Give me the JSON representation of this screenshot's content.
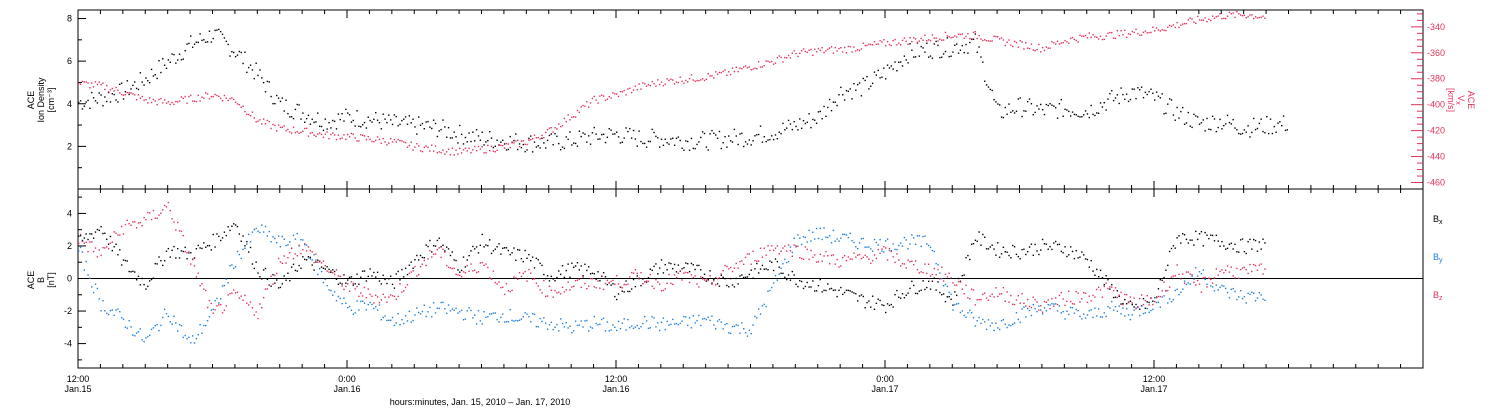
{
  "colors": {
    "density": "#000000",
    "velocity": "#e0325a",
    "bx": "#000000",
    "by": "#1f7fd8",
    "bz": "#e0325a",
    "axis": "#000000"
  },
  "chart_data": [
    {
      "type": "scatter",
      "panel": "top",
      "ylabel_lines": [
        "ACE",
        "Ion Density",
        "[cm⁻³]"
      ],
      "ylabel_right_lines": [
        "ACE",
        "V",
        "[km/s]"
      ],
      "ylabel_right_subscript": "x",
      "ylim": [
        0,
        8.4
      ],
      "yticks": [
        2,
        4,
        6,
        8
      ],
      "y2lim": [
        -465,
        -327
      ],
      "y2ticks": [
        -340,
        -360,
        -380,
        -400,
        -420,
        -440,
        -460
      ],
      "series": [
        {
          "axis": "left",
          "color": "density",
          "points_hours": [
            0,
            1,
            2,
            3,
            4,
            5,
            6,
            7,
            8,
            9,
            10,
            11,
            12,
            13,
            14,
            15,
            16,
            17,
            18,
            19,
            20,
            21,
            22,
            23,
            24,
            25,
            26,
            27,
            28,
            29,
            30,
            31,
            32,
            33,
            34,
            35,
            36,
            37,
            38,
            39,
            40,
            41,
            42,
            43,
            44,
            45,
            46,
            47,
            48,
            49,
            50,
            51,
            52,
            53,
            54,
            55,
            56,
            57,
            58,
            59,
            60
          ],
          "values": [
            4.1,
            4.3,
            4.6,
            5.2,
            6.0,
            6.8,
            7.3,
            6.5,
            5.4,
            4.0,
            3.6,
            3.2,
            3.4,
            3.3,
            3.1,
            3.0,
            2.9,
            2.6,
            2.4,
            2.3,
            2.2,
            2.2,
            2.3,
            2.5,
            2.6,
            2.4,
            2.4,
            2.3,
            2.3,
            2.4,
            2.5,
            2.7,
            3.0,
            3.4,
            4.6,
            4.8,
            5.5,
            6.4,
            6.6,
            6.7,
            6.9,
            3.6,
            3.9,
            3.7,
            3.8,
            3.7,
            4.2,
            4.6,
            4.3,
            3.6,
            3.1,
            3.2,
            2.9,
            3.0,
            3.1,
            null,
            null,
            null,
            null,
            null,
            null
          ]
        },
        {
          "axis": "right",
          "color": "velocity",
          "points_hours": [
            0,
            1,
            2,
            3,
            4,
            5,
            6,
            7,
            8,
            9,
            10,
            11,
            12,
            13,
            14,
            15,
            16,
            17,
            18,
            19,
            20,
            21,
            22,
            23,
            24,
            25,
            26,
            27,
            28,
            29,
            30,
            31,
            32,
            33,
            34,
            35,
            36,
            37,
            38,
            39,
            40,
            41,
            42,
            43,
            44,
            45,
            46,
            47,
            48,
            49,
            50,
            51,
            52,
            53,
            54,
            55,
            56,
            57,
            58,
            59,
            60
          ],
          "values": [
            -383,
            -385,
            -390,
            -396,
            -398,
            -395,
            -392,
            -396,
            -412,
            -418,
            -420,
            -423,
            -424,
            -426,
            -428,
            -432,
            -434,
            -436,
            -434,
            -432,
            -428,
            -420,
            -408,
            -396,
            -392,
            -386,
            -382,
            -380,
            -378,
            -375,
            -370,
            -366,
            -360,
            -358,
            -357,
            -355,
            -352,
            -350,
            -348,
            -346,
            -346,
            -350,
            -353,
            -356,
            -350,
            -347,
            -346,
            -344,
            -342,
            -338,
            -334,
            -331,
            -330,
            -332,
            null,
            null,
            null,
            null,
            null,
            null,
            null
          ]
        }
      ]
    },
    {
      "type": "scatter",
      "panel": "bottom",
      "ylabel_lines": [
        "ACE",
        "B",
        "[nT]"
      ],
      "ylim": [
        -5.5,
        5.5
      ],
      "yticks": [
        -4,
        -2,
        0,
        2,
        4
      ],
      "zero_line": 0,
      "legend_position": "right",
      "series": [
        {
          "name": "B",
          "subscript": "x",
          "color": "bx",
          "points_hours": [
            0,
            1,
            2,
            3,
            4,
            5,
            6,
            7,
            8,
            9,
            10,
            11,
            12,
            13,
            14,
            15,
            16,
            17,
            18,
            19,
            20,
            21,
            22,
            23,
            24,
            25,
            26,
            27,
            28,
            29,
            30,
            31,
            32,
            33,
            34,
            35,
            36,
            37,
            38,
            39,
            40,
            41,
            42,
            43,
            44,
            45,
            46,
            47,
            48,
            49,
            50,
            51,
            52,
            53,
            54,
            55,
            56,
            57,
            58,
            59,
            60
          ],
          "values": [
            2.2,
            3.2,
            1.0,
            -0.3,
            1.8,
            1.5,
            2.3,
            3.5,
            0.6,
            -0.5,
            1.2,
            0.6,
            -0.2,
            0.4,
            -0.3,
            1.2,
            2.4,
            0.8,
            2.3,
            1.6,
            1.4,
            0.2,
            0.6,
            0.5,
            -0.8,
            -0.1,
            0.8,
            0.7,
            0.3,
            -0.2,
            0.4,
            0.9,
            0.0,
            -0.4,
            -0.8,
            -1.3,
            -1.6,
            -0.6,
            -0.2,
            -1.3,
            2.6,
            1.8,
            1.7,
            2.0,
            1.9,
            1.2,
            -0.5,
            -1.9,
            -1.3,
            2.6,
            2.5,
            2.3,
            2.0,
            2.2,
            null,
            null,
            null,
            null,
            null,
            null,
            null
          ]
        },
        {
          "name": "B",
          "subscript": "y",
          "color": "by",
          "points_hours": [
            0,
            1,
            2,
            3,
            4,
            5,
            6,
            7,
            8,
            9,
            10,
            11,
            12,
            13,
            14,
            15,
            16,
            17,
            18,
            19,
            20,
            21,
            22,
            23,
            24,
            25,
            26,
            27,
            28,
            29,
            30,
            31,
            32,
            33,
            34,
            35,
            36,
            37,
            38,
            39,
            40,
            41,
            42,
            43,
            44,
            45,
            46,
            47,
            48,
            49,
            50,
            51,
            52,
            53,
            54,
            55,
            56,
            57,
            58,
            59,
            60
          ],
          "values": [
            1.8,
            -1.5,
            -2.5,
            -3.8,
            -2.0,
            -4.0,
            -2.0,
            1.2,
            3.1,
            2.2,
            2.4,
            -0.2,
            -1.8,
            -1.6,
            -2.6,
            -2.2,
            -1.8,
            -2.0,
            -2.4,
            -2.2,
            -2.5,
            -2.7,
            -3.0,
            -2.7,
            -3.0,
            -2.6,
            -2.8,
            -2.7,
            -2.5,
            -2.9,
            -3.1,
            -0.4,
            2.4,
            2.8,
            2.5,
            2.2,
            2.1,
            2.3,
            2.2,
            -1.5,
            -2.6,
            -2.8,
            -2.2,
            -1.7,
            -2.0,
            -2.3,
            -1.8,
            -2.1,
            -1.5,
            -0.8,
            0.5,
            -0.7,
            -1.1,
            -1.0,
            null,
            null,
            null,
            null,
            null,
            null,
            null
          ]
        },
        {
          "name": "B",
          "subscript": "z",
          "color": "bz",
          "points_hours": [
            0,
            1,
            2,
            3,
            4,
            5,
            6,
            7,
            8,
            9,
            10,
            11,
            12,
            13,
            14,
            15,
            16,
            17,
            18,
            19,
            20,
            21,
            22,
            23,
            24,
            25,
            26,
            27,
            28,
            29,
            30,
            31,
            32,
            33,
            34,
            35,
            36,
            37,
            38,
            39,
            40,
            41,
            42,
            43,
            44,
            45,
            46,
            47,
            48,
            49,
            50,
            51,
            52,
            53,
            54,
            55,
            56,
            57,
            58,
            59,
            60
          ],
          "values": [
            2.5,
            1.5,
            3.2,
            3.6,
            4.5,
            1.2,
            -2.2,
            -1.0,
            -2.0,
            1.2,
            2.0,
            0.8,
            -0.5,
            -1.0,
            -1.2,
            0.5,
            1.8,
            0.2,
            1.0,
            -0.6,
            0.3,
            -0.8,
            -0.4,
            -0.2,
            -0.2,
            0.2,
            -0.3,
            0.2,
            -0.4,
            0.6,
            1.3,
            2.0,
            1.8,
            1.4,
            1.1,
            1.3,
            1.6,
            0.9,
            0.6,
            0.0,
            -1.2,
            -0.8,
            -1.3,
            -1.6,
            -1.2,
            -1.0,
            -0.6,
            -1.5,
            -1.3,
            0.5,
            -0.5,
            0.6,
            0.4,
            0.6,
            null,
            null,
            null,
            null,
            null,
            null,
            null
          ]
        }
      ]
    }
  ],
  "x_axis": {
    "major_ticks": [
      {
        "hour": 0,
        "time": "12:00",
        "date": "Jan.15"
      },
      {
        "hour": 12,
        "time": "0:00",
        "date": "Jan.16"
      },
      {
        "hour": 24,
        "time": "12:00",
        "date": "Jan.16"
      },
      {
        "hour": 36,
        "time": "0:00",
        "date": "Jan.17"
      },
      {
        "hour": 48,
        "time": "12:00",
        "date": "Jan.17"
      }
    ],
    "xlim_hours": [
      0,
      60
    ],
    "xlabel": "hours:minutes, Jan. 15, 2010 – Jan. 17, 2010"
  }
}
